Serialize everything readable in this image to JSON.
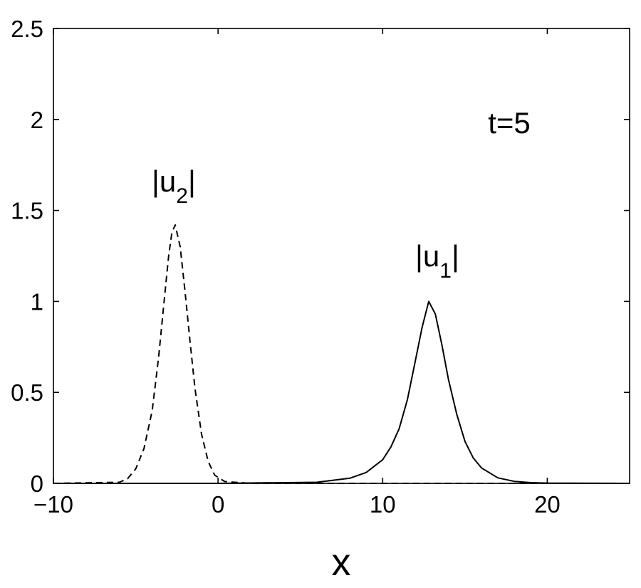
{
  "chart_data": {
    "type": "line",
    "title": "",
    "xlabel": "x",
    "ylabel": "",
    "xlim": [
      -10,
      25
    ],
    "ylim": [
      0,
      2.5
    ],
    "grid": false,
    "x_ticks": [
      -10,
      0,
      10,
      20
    ],
    "y_ticks": [
      0,
      0.5,
      1,
      1.5,
      2,
      2.5
    ],
    "x_tick_labels": [
      "−10",
      "0",
      "10",
      "20"
    ],
    "y_tick_labels": [
      "0",
      "0.5",
      "1",
      "1.5",
      "2",
      "2.5"
    ],
    "annotations": {
      "time": "t=5",
      "u1": {
        "text": "|u",
        "sub": "1",
        "close": "|"
      },
      "u2": {
        "text": "|u",
        "sub": "2",
        "close": "|"
      }
    },
    "series": [
      {
        "style": "solid",
        "label_ref": "u1",
        "x": [
          -10,
          0,
          6,
          8,
          9,
          10,
          10.5,
          11,
          11.5,
          12,
          12.4,
          12.8,
          13.2,
          13.6,
          14,
          14.5,
          15,
          15.5,
          16,
          17,
          18,
          19,
          20,
          25
        ],
        "values": [
          0,
          0,
          0.006,
          0.028,
          0.06,
          0.13,
          0.2,
          0.3,
          0.46,
          0.68,
          0.86,
          1.0,
          0.93,
          0.76,
          0.57,
          0.38,
          0.23,
          0.14,
          0.085,
          0.03,
          0.011,
          0.004,
          0.0015,
          0
        ]
      },
      {
        "style": "dashed",
        "label_ref": "u2",
        "x": [
          -10,
          -6,
          -5.5,
          -5,
          -4.5,
          -4,
          -3.6,
          -3.3,
          -3.0,
          -2.8,
          -2.6,
          -2.3,
          -2.0,
          -1.7,
          -1.4,
          -1.0,
          -0.6,
          -0.2,
          0.4,
          2,
          25
        ],
        "values": [
          0,
          0.006,
          0.025,
          0.08,
          0.19,
          0.4,
          0.7,
          0.98,
          1.25,
          1.38,
          1.42,
          1.3,
          1.05,
          0.78,
          0.52,
          0.27,
          0.12,
          0.045,
          0.01,
          0,
          0
        ]
      }
    ]
  }
}
